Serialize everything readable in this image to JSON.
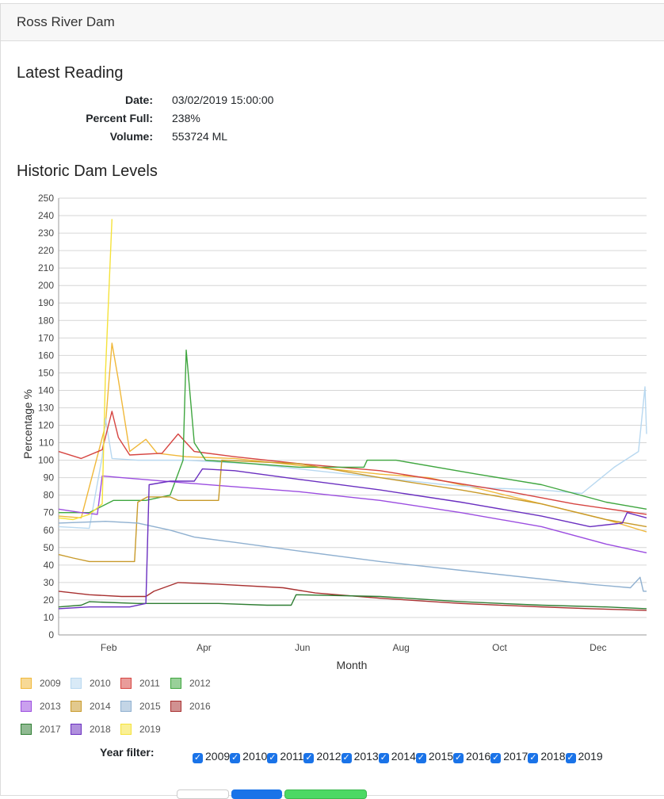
{
  "header": {
    "title": "Ross River Dam"
  },
  "latest": {
    "heading": "Latest Reading",
    "rows": [
      {
        "label": "Date:",
        "value": "03/02/2019 15:00:00"
      },
      {
        "label": "Percent Full:",
        "value": "238%"
      },
      {
        "label": "Volume:",
        "value": "553724 ML"
      }
    ]
  },
  "historic": {
    "heading": "Historic Dam Levels"
  },
  "chart_data": {
    "type": "line",
    "xlabel": "Month",
    "ylabel": "Percentage %",
    "ylim": [
      0,
      250
    ],
    "yticks": [
      0,
      10,
      20,
      30,
      40,
      50,
      60,
      70,
      80,
      90,
      100,
      110,
      120,
      130,
      140,
      150,
      160,
      170,
      180,
      190,
      200,
      210,
      220,
      230,
      240,
      250
    ],
    "xlim": [
      1,
      365
    ],
    "xticks": [
      {
        "day": 32,
        "label": "Feb"
      },
      {
        "day": 91,
        "label": "Apr"
      },
      {
        "day": 152,
        "label": "Jun"
      },
      {
        "day": 213,
        "label": "Aug"
      },
      {
        "day": 274,
        "label": "Oct"
      },
      {
        "day": 335,
        "label": "Dec"
      }
    ],
    "grid": true,
    "legend_position": "bottom",
    "series": [
      {
        "name": "2009",
        "color": "#f0b83a",
        "points": [
          [
            1,
            68
          ],
          [
            15,
            67
          ],
          [
            30,
            120
          ],
          [
            34,
            167
          ],
          [
            38,
            146
          ],
          [
            45,
            105
          ],
          [
            55,
            112
          ],
          [
            62,
            104
          ],
          [
            80,
            102
          ],
          [
            110,
            101
          ],
          [
            150,
            97
          ],
          [
            200,
            92
          ],
          [
            230,
            90
          ],
          [
            260,
            84
          ],
          [
            300,
            75
          ],
          [
            340,
            66
          ],
          [
            365,
            59
          ]
        ]
      },
      {
        "name": "2010",
        "color": "#b8d8f0",
        "points": [
          [
            1,
            62
          ],
          [
            20,
            61
          ],
          [
            28,
            102
          ],
          [
            30,
            124
          ],
          [
            34,
            101
          ],
          [
            50,
            100
          ],
          [
            80,
            100
          ],
          [
            120,
            98
          ],
          [
            160,
            94
          ],
          [
            200,
            90
          ],
          [
            240,
            86
          ],
          [
            270,
            84
          ],
          [
            300,
            83
          ],
          [
            325,
            81
          ],
          [
            345,
            96
          ],
          [
            360,
            105
          ],
          [
            364,
            142
          ],
          [
            365,
            115
          ]
        ]
      },
      {
        "name": "2011",
        "color": "#d64541",
        "points": [
          [
            1,
            105
          ],
          [
            15,
            101
          ],
          [
            28,
            106
          ],
          [
            34,
            128
          ],
          [
            38,
            113
          ],
          [
            45,
            103
          ],
          [
            65,
            104
          ],
          [
            75,
            115
          ],
          [
            85,
            105
          ],
          [
            110,
            102
          ],
          [
            150,
            98
          ],
          [
            200,
            94
          ],
          [
            240,
            88
          ],
          [
            280,
            82
          ],
          [
            320,
            75
          ],
          [
            365,
            69
          ]
        ]
      },
      {
        "name": "2012",
        "color": "#3fa63f",
        "points": [
          [
            1,
            70
          ],
          [
            20,
            70
          ],
          [
            35,
            77
          ],
          [
            55,
            77
          ],
          [
            70,
            80
          ],
          [
            78,
            100
          ],
          [
            80,
            163
          ],
          [
            85,
            110
          ],
          [
            92,
            100
          ],
          [
            150,
            96
          ],
          [
            190,
            96
          ],
          [
            192,
            100
          ],
          [
            210,
            100
          ],
          [
            260,
            92
          ],
          [
            300,
            86
          ],
          [
            340,
            76
          ],
          [
            365,
            72
          ]
        ]
      },
      {
        "name": "2013",
        "color": "#9b4de0",
        "points": [
          [
            1,
            72
          ],
          [
            15,
            70
          ],
          [
            25,
            69
          ],
          [
            28,
            91
          ],
          [
            40,
            90
          ],
          [
            80,
            87
          ],
          [
            150,
            82
          ],
          [
            200,
            77
          ],
          [
            250,
            70
          ],
          [
            300,
            62
          ],
          [
            340,
            52
          ],
          [
            365,
            47
          ]
        ]
      },
      {
        "name": "2014",
        "color": "#c89a2a",
        "points": [
          [
            1,
            46
          ],
          [
            10,
            44
          ],
          [
            20,
            42
          ],
          [
            48,
            42
          ],
          [
            50,
            76
          ],
          [
            56,
            79
          ],
          [
            70,
            79
          ],
          [
            75,
            77
          ],
          [
            100,
            77
          ],
          [
            102,
            100
          ],
          [
            150,
            98
          ],
          [
            200,
            90
          ],
          [
            250,
            83
          ],
          [
            300,
            75
          ],
          [
            340,
            66
          ],
          [
            365,
            62
          ]
        ]
      },
      {
        "name": "2015",
        "color": "#8fb0d0",
        "points": [
          [
            1,
            64
          ],
          [
            30,
            65
          ],
          [
            50,
            64
          ],
          [
            70,
            60
          ],
          [
            85,
            56
          ],
          [
            110,
            53
          ],
          [
            150,
            48
          ],
          [
            200,
            42
          ],
          [
            250,
            37
          ],
          [
            300,
            32
          ],
          [
            330,
            29
          ],
          [
            355,
            27
          ],
          [
            361,
            33
          ],
          [
            363,
            25
          ],
          [
            365,
            25
          ]
        ]
      },
      {
        "name": "2016",
        "color": "#a83030",
        "points": [
          [
            1,
            25
          ],
          [
            20,
            23
          ],
          [
            40,
            22
          ],
          [
            55,
            22
          ],
          [
            60,
            25
          ],
          [
            75,
            30
          ],
          [
            100,
            29
          ],
          [
            140,
            27
          ],
          [
            160,
            24
          ],
          [
            200,
            21
          ],
          [
            250,
            18
          ],
          [
            300,
            16
          ],
          [
            330,
            15
          ],
          [
            365,
            14
          ]
        ]
      },
      {
        "name": "2017",
        "color": "#2e7d32",
        "points": [
          [
            1,
            16
          ],
          [
            15,
            17
          ],
          [
            20,
            19
          ],
          [
            50,
            18
          ],
          [
            70,
            18
          ],
          [
            100,
            18
          ],
          [
            130,
            17
          ],
          [
            145,
            17
          ],
          [
            148,
            23
          ],
          [
            200,
            22
          ],
          [
            250,
            19
          ],
          [
            300,
            17
          ],
          [
            340,
            16
          ],
          [
            365,
            15
          ]
        ]
      },
      {
        "name": "2018",
        "color": "#6a2fc0",
        "points": [
          [
            1,
            15
          ],
          [
            20,
            16
          ],
          [
            45,
            16
          ],
          [
            55,
            18
          ],
          [
            57,
            86
          ],
          [
            70,
            88
          ],
          [
            85,
            88
          ],
          [
            90,
            95
          ],
          [
            110,
            94
          ],
          [
            150,
            89
          ],
          [
            200,
            83
          ],
          [
            250,
            76
          ],
          [
            300,
            68
          ],
          [
            330,
            62
          ],
          [
            350,
            64
          ],
          [
            353,
            70
          ],
          [
            365,
            67
          ]
        ]
      },
      {
        "name": "2019",
        "color": "#f5e23a",
        "points": [
          [
            1,
            67
          ],
          [
            10,
            66
          ],
          [
            20,
            69
          ],
          [
            28,
            75
          ],
          [
            30,
            150
          ],
          [
            34,
            238
          ]
        ]
      }
    ]
  },
  "filter": {
    "label": "Year filter:",
    "years": [
      "2009",
      "2010",
      "2011",
      "2012",
      "2013",
      "2014",
      "2015",
      "2016",
      "2017",
      "2018",
      "2019"
    ]
  }
}
